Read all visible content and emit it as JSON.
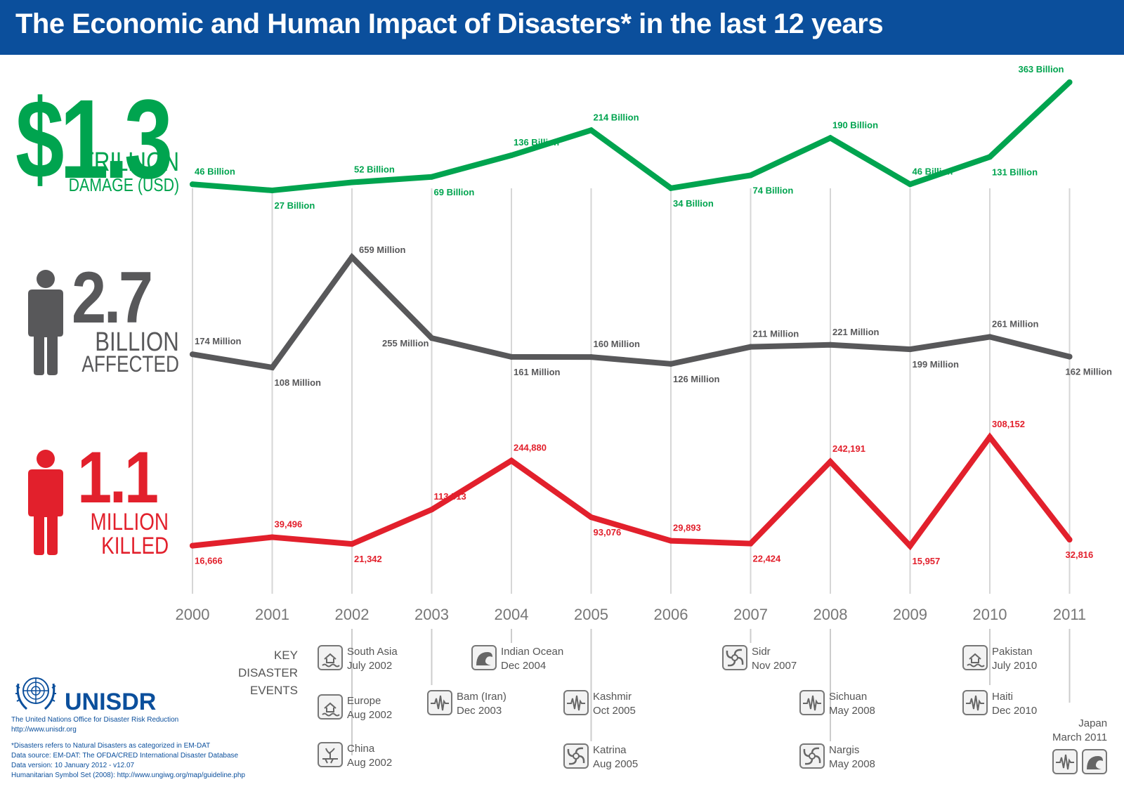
{
  "title": "The Economic and Human Impact of Disasters* in the last 12 years",
  "stats": {
    "damage": {
      "value": "$1.3",
      "unit": "TRILLION",
      "label": "DAMAGE (USD)",
      "color": "#00a44f"
    },
    "affected": {
      "value": "2.7",
      "unit": "BILLION",
      "label": "AFFECTED",
      "color": "#58585a"
    },
    "killed": {
      "value": "1.1",
      "unit": "MILLION",
      "label": "KILLED",
      "color": "#e2202c"
    }
  },
  "chart_data": {
    "type": "line",
    "x": [
      "2000",
      "2001",
      "2002",
      "2003",
      "2004",
      "2005",
      "2006",
      "2007",
      "2008",
      "2009",
      "2010",
      "2011"
    ],
    "series": [
      {
        "key": "damage",
        "color": "#00a44f",
        "values": [
          46,
          27,
          52,
          69,
          136,
          214,
          34,
          74,
          190,
          46,
          131,
          363
        ],
        "labels": [
          "46 Billion",
          "27 Billion",
          "52 Billion",
          "69 Billion",
          "136 Billion",
          "214 Billion",
          "34 Billion",
          "74 Billion",
          "190 Billion",
          "46 Billion",
          "131 Billion",
          "363 Billion"
        ]
      },
      {
        "key": "affected",
        "color": "#58585a",
        "values": [
          174,
          108,
          659,
          255,
          161,
          160,
          126,
          211,
          221,
          199,
          261,
          162
        ],
        "labels": [
          "174 Million",
          "108 Million",
          "659 Million",
          "255 Million",
          "161 Million",
          "160 Million",
          "126 Million",
          "211 Million",
          "221 Million",
          "199 Million",
          "261 Million",
          "162 Million"
        ]
      },
      {
        "key": "killed",
        "color": "#e2202c",
        "values": [
          16666,
          39496,
          21342,
          113513,
          244880,
          93076,
          29893,
          22424,
          242191,
          15957,
          308152,
          32816
        ],
        "labels": [
          "16,666",
          "39,496",
          "21,342",
          "113,513",
          "244,880",
          "93,076",
          "29,893",
          "22,424",
          "242,191",
          "15,957",
          "308,152",
          "32,816"
        ]
      }
    ]
  },
  "key_events_title": "KEY DISASTER EVENTS",
  "key_events": [
    {
      "year": "2002",
      "name": "South Asia",
      "date": "July 2002",
      "icon": "flood-icon"
    },
    {
      "year": "2002",
      "name": "Europe",
      "date": "Aug 2002",
      "icon": "flood-icon"
    },
    {
      "year": "2002",
      "name": "China",
      "date": "Aug 2002",
      "icon": "drought-icon"
    },
    {
      "year": "2003",
      "name": "Bam (Iran)",
      "date": "Dec 2003",
      "icon": "earthquake-icon"
    },
    {
      "year": "2004",
      "name": "Indian Ocean",
      "date": "Dec 2004",
      "icon": "tsunami-icon"
    },
    {
      "year": "2005",
      "name": "Kashmir",
      "date": "Oct 2005",
      "icon": "earthquake-icon"
    },
    {
      "year": "2005",
      "name": "Katrina",
      "date": "Aug 2005",
      "icon": "cyclone-icon"
    },
    {
      "year": "2007",
      "name": "Sidr",
      "date": "Nov 2007",
      "icon": "cyclone-icon"
    },
    {
      "year": "2008",
      "name": "Sichuan",
      "date": "May 2008",
      "icon": "earthquake-icon"
    },
    {
      "year": "2008",
      "name": "Nargis",
      "date": "May 2008",
      "icon": "cyclone-icon"
    },
    {
      "year": "2010",
      "name": "Pakistan",
      "date": "July 2010",
      "icon": "flood-icon"
    },
    {
      "year": "2010",
      "name": "Haiti",
      "date": "Dec 2010",
      "icon": "earthquake-icon"
    },
    {
      "year": "2011",
      "name": "Japan",
      "date": "March 2011",
      "icon": "earthquake-icon"
    }
  ],
  "org": {
    "name": "UNISDR",
    "subtitle": "The United Nations Office for Disaster Risk Reduction",
    "url": "http://www.unisdr.org"
  },
  "footnotes": [
    "*Disasters refers to Natural Disasters as categorized in EM-DAT",
    "Data source: EM-DAT: The OFDA/CRED International Disaster Database",
    "Data version: 10 January 2012 - v12.07",
    "Humanitarian Symbol Set (2008): http://www.ungiwg.org/map/guideline.php"
  ]
}
